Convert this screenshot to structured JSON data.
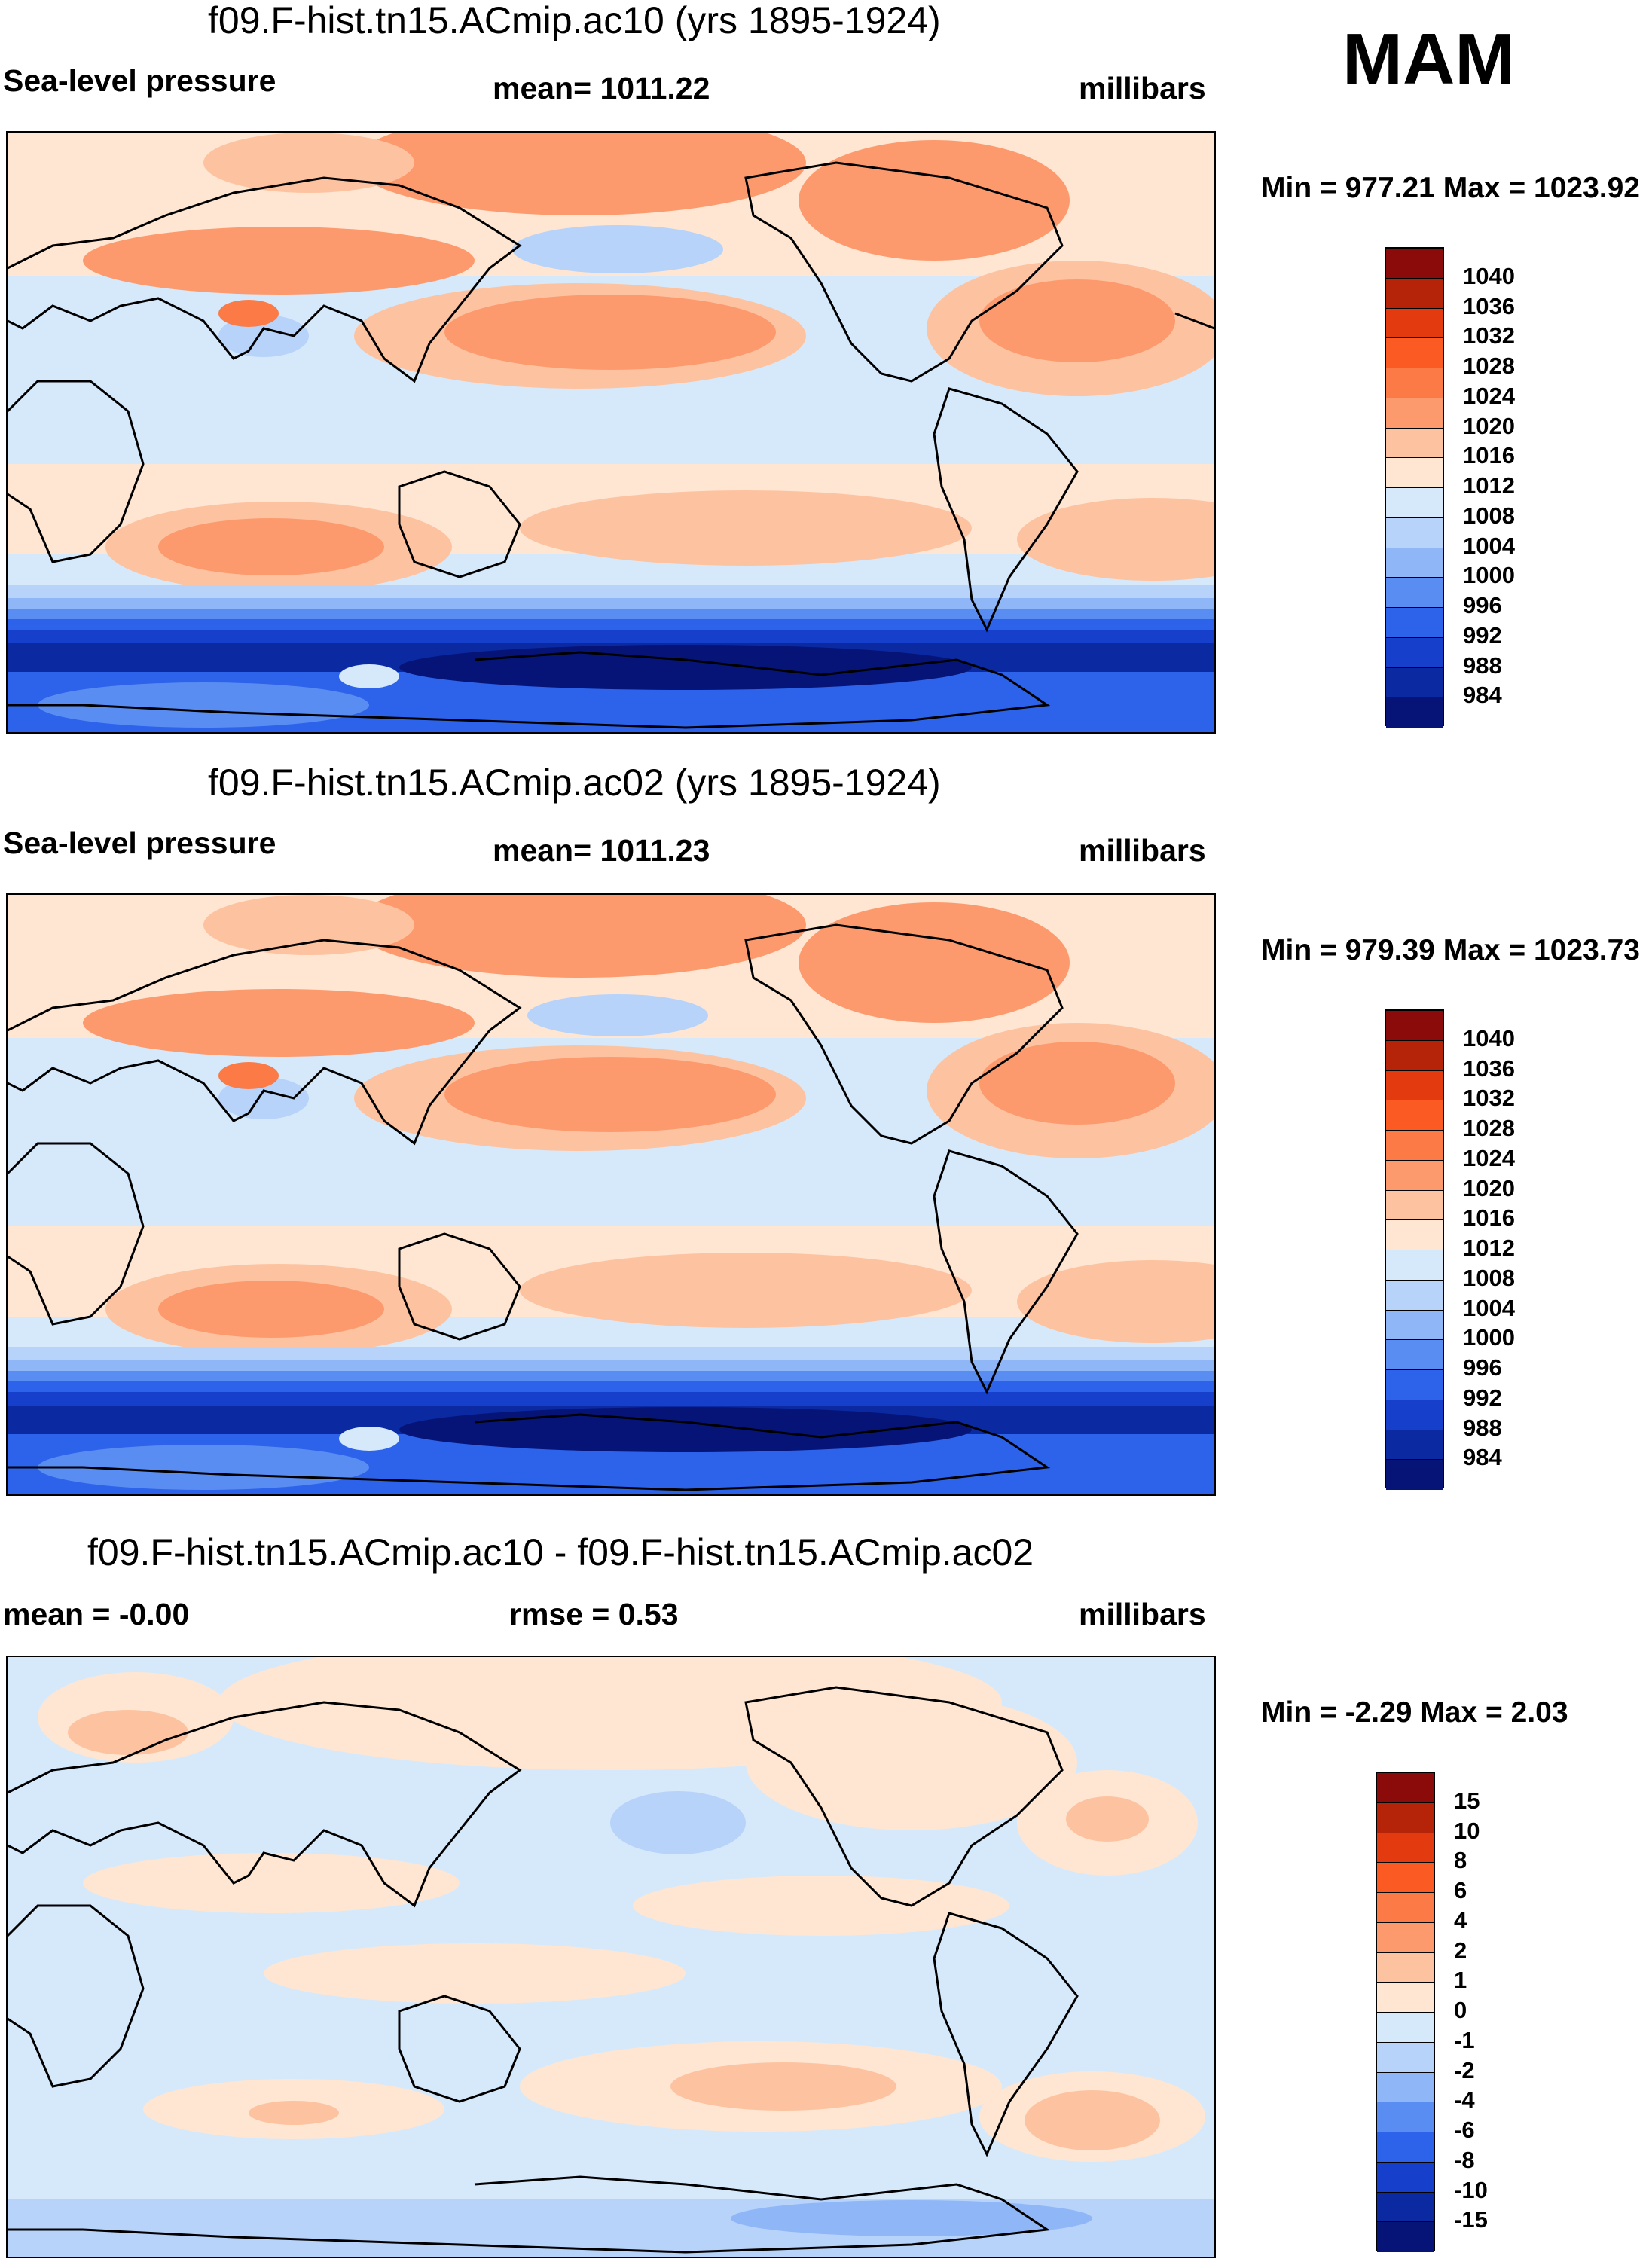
{
  "season": "MAM",
  "panels": [
    {
      "title": "f09.F-hist.tn15.ACmip.ac10 (yrs 1895-1924)",
      "left_label": "Sea-level pressure",
      "center_label": "mean= 1011.22",
      "right_label": "millibars",
      "minmax": "Min = 977.21 Max = 1023.92",
      "colorbar": {
        "labels": [
          "1040",
          "1036",
          "1032",
          "1028",
          "1024",
          "1020",
          "1016",
          "1012",
          "1008",
          "1004",
          "1000",
          "996",
          "992",
          "988",
          "984"
        ],
        "colors": [
          "#8b0a0a",
          "#b52408",
          "#e33a0f",
          "#fb5a23",
          "#fc7a45",
          "#fc9a6e",
          "#fdc3a1",
          "#fee6d2",
          "#d6e9fb",
          "#b7d3fa",
          "#8fb6f7",
          "#5a8df2",
          "#2c63ea",
          "#1640cc",
          "#0b2aa1",
          "#061478"
        ]
      },
      "map": {
        "field": "Sea-level pressure",
        "units": "millibars"
      }
    },
    {
      "title": "f09.F-hist.tn15.ACmip.ac02 (yrs 1895-1924)",
      "left_label": "Sea-level pressure",
      "center_label": "mean= 1011.23",
      "right_label": "millibars",
      "minmax": "Min = 979.39 Max = 1023.73",
      "colorbar": {
        "labels": [
          "1040",
          "1036",
          "1032",
          "1028",
          "1024",
          "1020",
          "1016",
          "1012",
          "1008",
          "1004",
          "1000",
          "996",
          "992",
          "988",
          "984"
        ],
        "colors": [
          "#8b0a0a",
          "#b52408",
          "#e33a0f",
          "#fb5a23",
          "#fc7a45",
          "#fc9a6e",
          "#fdc3a1",
          "#fee6d2",
          "#d6e9fb",
          "#b7d3fa",
          "#8fb6f7",
          "#5a8df2",
          "#2c63ea",
          "#1640cc",
          "#0b2aa1",
          "#061478"
        ]
      },
      "map": {
        "field": "Sea-level pressure",
        "units": "millibars"
      }
    },
    {
      "title": "f09.F-hist.tn15.ACmip.ac10 - f09.F-hist.tn15.ACmip.ac02",
      "left_label": "mean =  -0.00",
      "center_label": "rmse =   0.53",
      "right_label": "millibars",
      "minmax": "Min =  -2.29 Max =   2.03",
      "colorbar": {
        "labels": [
          "15",
          "10",
          "8",
          "6",
          "4",
          "2",
          "1",
          "0",
          "-1",
          "-2",
          "-4",
          "-6",
          "-8",
          "-10",
          "-15"
        ],
        "colors": [
          "#8b0a0a",
          "#b52408",
          "#e33a0f",
          "#fb5a23",
          "#fc7a45",
          "#fc9a6e",
          "#fdc3a1",
          "#fee6d2",
          "#d6e9fb",
          "#b7d3fa",
          "#8fb6f7",
          "#5a8df2",
          "#2c63ea",
          "#1640cc",
          "#0b2aa1",
          "#061478"
        ]
      },
      "map": {
        "field": "Difference",
        "units": "millibars"
      }
    }
  ]
}
